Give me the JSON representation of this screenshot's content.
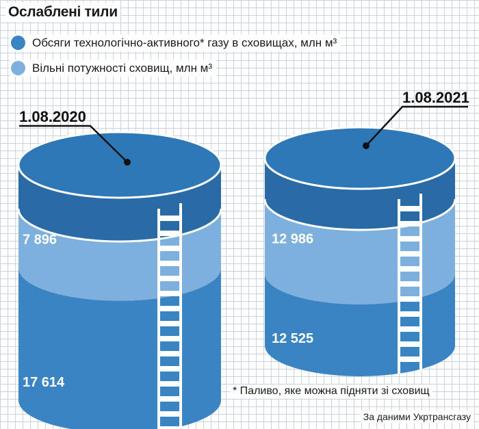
{
  "title": "Ослаблені тили",
  "legend": [
    {
      "label": "Обсяги технологічно-активного* газу в сховищах, млн м³",
      "color": "#3a84c4"
    },
    {
      "label": "Вільні потужності сховищ, млн м³",
      "color": "#7db0dc"
    }
  ],
  "footnote": "* Паливо, яке можна підняти зі сховищ",
  "source": "За даними Укртрансгазу",
  "chart_data": {
    "type": "bar",
    "stacked": true,
    "categories": [
      "1.08.2020",
      "1.08.2021"
    ],
    "series": [
      {
        "name": "Обсяги технологічно-активного* газу в сховищах, млн м³",
        "values": [
          17614,
          12525
        ],
        "labels": [
          "17 614",
          "12 525"
        ],
        "color": "#3a84c4"
      },
      {
        "name": "Вільні потужності сховищ, млн м³",
        "values": [
          7896,
          12986
        ],
        "labels": [
          "7 896",
          "12 986"
        ],
        "color": "#7db0dc"
      }
    ]
  }
}
